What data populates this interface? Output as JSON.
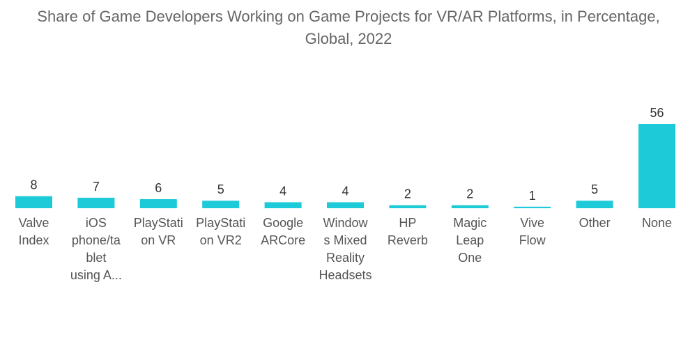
{
  "chart_data": {
    "type": "bar",
    "title_line1": "Share of Game Developers Working on Game Projects for VR/AR Platforms, in Percentage,",
    "title_line2": "Global, 2022",
    "xlabel": "",
    "ylabel": "",
    "ylim": [
      0,
      56
    ],
    "grid": false,
    "bar_color": "#1CCAD8",
    "categories": [
      "Valve Index",
      "iOS phone/tablet using A...",
      "PlayStation VR",
      "PlayStation VR2",
      "Google ARCore",
      "Windows Mixed Reality Headsets",
      "HP Reverb",
      "Magic Leap One",
      "Vive Flow",
      "Other",
      "None"
    ],
    "category_label_lines": [
      [
        "Valve",
        "Index"
      ],
      [
        "iOS",
        "phone/ta",
        "blet",
        "using A..."
      ],
      [
        "PlayStati",
        "on VR"
      ],
      [
        "PlayStati",
        "on VR2"
      ],
      [
        "Google",
        "ARCore"
      ],
      [
        "Window",
        "s Mixed",
        "Reality",
        "Headsets"
      ],
      [
        "HP",
        "Reverb"
      ],
      [
        "Magic",
        "Leap",
        "One"
      ],
      [
        "Vive",
        "Flow"
      ],
      [
        "Other"
      ],
      [
        "None"
      ]
    ],
    "values": [
      8,
      7,
      6,
      5,
      4,
      4,
      2,
      2,
      1,
      5,
      56
    ]
  }
}
